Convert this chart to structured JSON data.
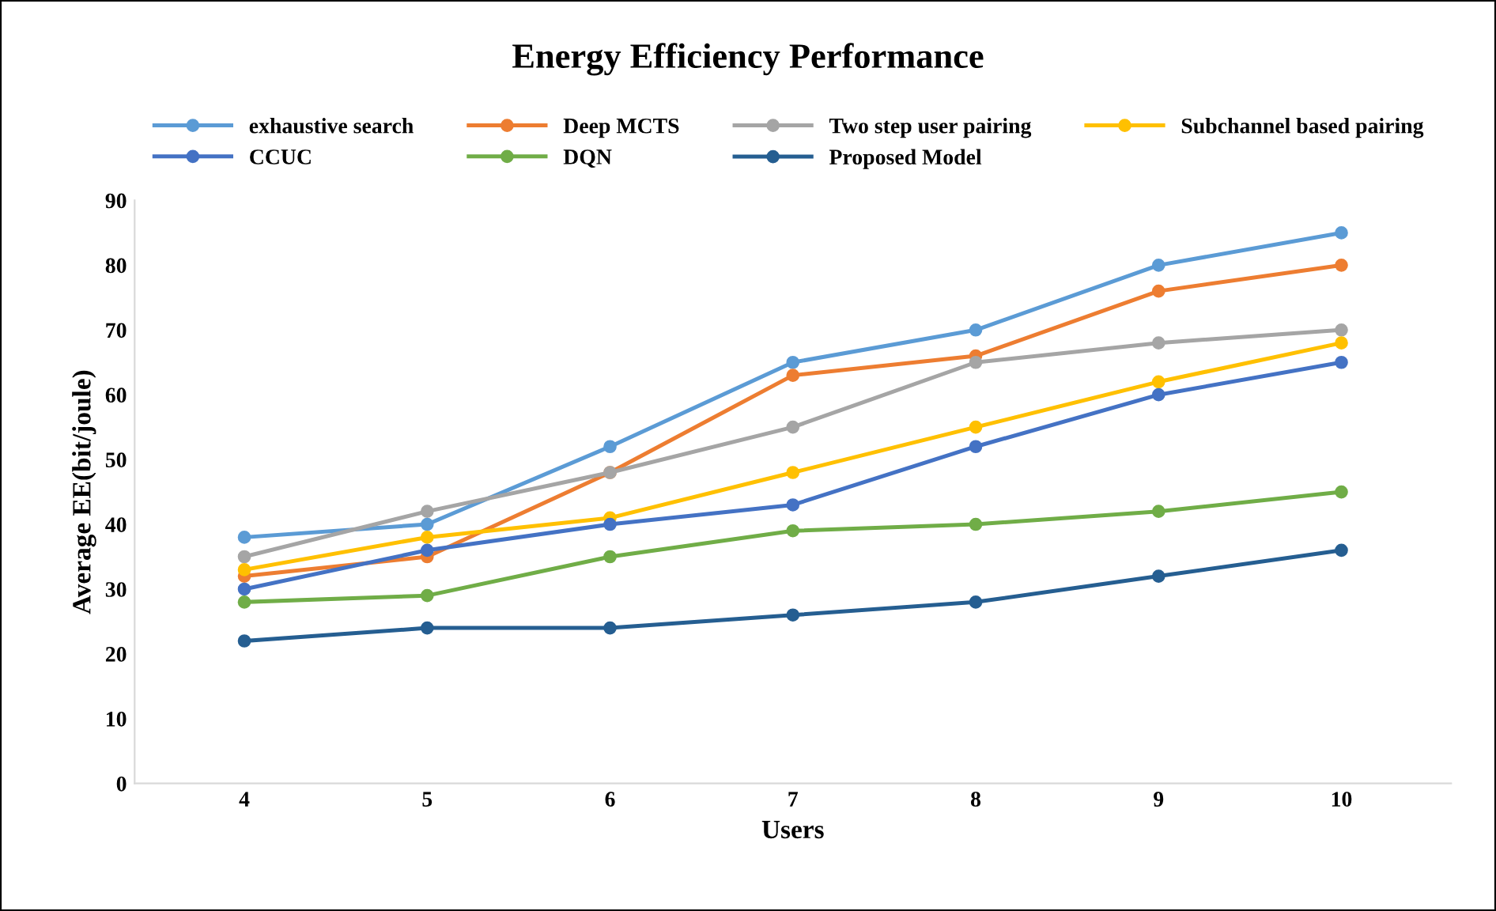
{
  "chart_data": {
    "type": "line",
    "title": "Energy Efficiency Performance",
    "xlabel": "Users",
    "ylabel": "Average EE(bit/joule)",
    "categories": [
      "4",
      "5",
      "6",
      "7",
      "8",
      "9",
      "10"
    ],
    "ylim": [
      0,
      90
    ],
    "yticks": [
      0,
      10,
      20,
      30,
      40,
      50,
      60,
      70,
      80,
      90
    ],
    "grid": false,
    "legend": "top",
    "marker": "circle",
    "line_style": "solid",
    "series": [
      {
        "name": "exhaustive search",
        "color": "#5b9bd5",
        "values": [
          38,
          40,
          52,
          65,
          70,
          80,
          85
        ]
      },
      {
        "name": "Deep MCTS",
        "color": "#ed7d31",
        "values": [
          32,
          35,
          48,
          63,
          66,
          76,
          80
        ]
      },
      {
        "name": "Two step user pairing",
        "color": "#a5a5a5",
        "values": [
          35,
          42,
          48,
          55,
          65,
          68,
          70
        ]
      },
      {
        "name": "Subchannel based pairing",
        "color": "#ffc000",
        "values": [
          33,
          38,
          41,
          48,
          55,
          62,
          68
        ]
      },
      {
        "name": "CCUC",
        "color": "#4472c4",
        "values": [
          30,
          36,
          40,
          43,
          52,
          60,
          65
        ]
      },
      {
        "name": "DQN",
        "color": "#70ad47",
        "values": [
          28,
          29,
          35,
          39,
          40,
          42,
          45
        ]
      },
      {
        "name": "Proposed Model",
        "color": "#255e91",
        "values": [
          22,
          24,
          24,
          26,
          28,
          32,
          36
        ]
      }
    ]
  }
}
